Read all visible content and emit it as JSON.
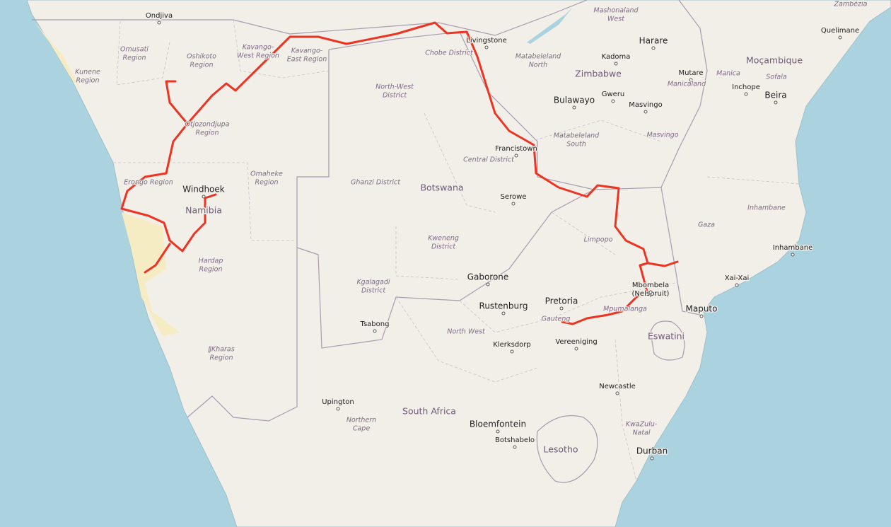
{
  "countries": [
    "Namibia",
    "Botswana",
    "Zimbabwe",
    "South Africa",
    "Lesotho",
    "Eswatini",
    "Moçambique"
  ],
  "cities": [
    "Ondjiva",
    "Windhoek",
    "Livingstone",
    "Harare",
    "Kadoma",
    "Mutare",
    "Quelimane",
    "Beira",
    "Inchope",
    "Bulawayo",
    "Gweru",
    "Masvingo",
    "Francistown",
    "Serowe",
    "Gaborone",
    "Rustenburg",
    "Pretoria",
    "Vereeniging",
    "Klerksdorp",
    "Tsabong",
    "Upington",
    "Bloemfontein",
    "Botshabelo",
    "Newcastle",
    "Durban",
    "Maputo",
    "Xai-Xai",
    "Inhambane",
    [
      "Mbombela",
      "(Nelspruit)"
    ]
  ],
  "regions": [
    [
      "Omusati",
      "Region"
    ],
    [
      "Oshikoto",
      "Region"
    ],
    [
      "Kavango-",
      "West Region"
    ],
    [
      "Kavango-",
      "East Region"
    ],
    [
      "Kunene",
      "Region"
    ],
    [
      "Otjozondjupa",
      "Region"
    ],
    [
      "Erongo Region"
    ],
    [
      "Omaheke",
      "Region"
    ],
    [
      "Hardap",
      "Region"
    ],
    [
      "ǁKharas",
      "Region"
    ],
    [
      "Chobe District"
    ],
    [
      "North-West",
      "District"
    ],
    [
      "Ghanzi District"
    ],
    [
      "Central District"
    ],
    [
      "Kweneng",
      "District"
    ],
    [
      "Kgalagadi",
      "District"
    ],
    [
      "North West"
    ],
    [
      "Gauteng"
    ],
    [
      "Mpumalanga"
    ],
    [
      "Limpopo"
    ],
    [
      "Northern",
      "Cape"
    ],
    [
      "KwaZulu-",
      "Natal"
    ],
    [
      "Matabeleland",
      "North"
    ],
    [
      "Matabeleland",
      "South"
    ],
    [
      "Mashonaland",
      "West"
    ],
    [
      "Manicaland"
    ],
    [
      "Masvingo"
    ],
    [
      "Manica"
    ],
    [
      "Sofala"
    ],
    [
      "Gaza"
    ],
    [
      "Inhambane"
    ],
    [
      "Zambézia"
    ]
  ]
}
